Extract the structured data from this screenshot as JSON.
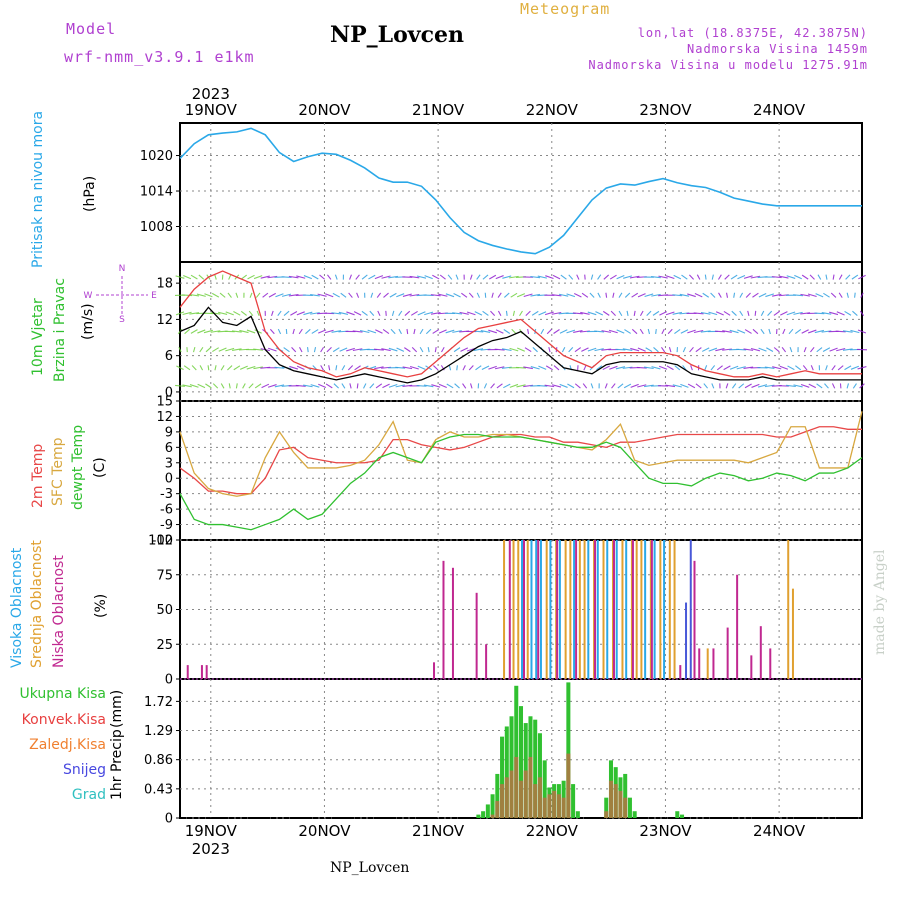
{
  "header": {
    "model_label": "Model",
    "model_version": "wrf-nmm_v3.9.1 e1km",
    "title": "NP_Lovcen",
    "subtitle": "Meteogram",
    "coords": "lon,lat (18.8375E, 42.3875N)",
    "altitude": "Nadmorska Visina 1459m",
    "model_altitude": "Nadmorska Visina u modelu 1275.91m"
  },
  "footer": {
    "station": "NP_Lovcen",
    "watermark": "made by Angel"
  },
  "chart_data": [
    {
      "type": "line",
      "panel": "pressure",
      "ylabel": "Pritisak na nivou mora",
      "unit": "(hPa)",
      "yticks": [
        1008,
        1014,
        1020
      ],
      "ylim": [
        1002,
        1025.5
      ],
      "grid": true,
      "x_top_labels": [
        "19NOV",
        "20NOV",
        "21NOV",
        "22NOV",
        "23NOV",
        "24NOV"
      ],
      "x_top_year": "2023",
      "color": "#2aa8e8",
      "x": [
        0,
        3,
        6,
        9,
        12,
        15,
        18,
        21,
        24,
        27,
        30,
        33,
        36,
        39,
        42,
        45,
        48,
        51,
        54,
        57,
        60,
        63,
        66,
        69,
        72,
        75,
        78,
        81,
        84,
        87,
        90,
        93,
        96,
        99,
        102,
        105,
        108,
        111,
        114,
        117,
        120,
        123,
        126,
        129,
        132,
        135,
        138,
        141,
        144
      ],
      "values": [
        1019.5,
        1022,
        1023.5,
        1023.8,
        1024,
        1024.6,
        1023.5,
        1020.5,
        1019,
        1019.8,
        1020.4,
        1020.2,
        1019.2,
        1017.9,
        1016.2,
        1015.5,
        1015.5,
        1014.8,
        1012.5,
        1009.5,
        1007,
        1005.6,
        1004.8,
        1004.2,
        1003.7,
        1003.4,
        1004.5,
        1006.5,
        1009.5,
        1012.5,
        1014.5,
        1015.2,
        1015,
        1015.6,
        1016.1,
        1015.4,
        1014.9,
        1014.6,
        1013.8,
        1012.8,
        1012.3,
        1011.8,
        1011.5,
        1011.5,
        1011.5,
        1011.5,
        1011.5,
        1011.5,
        1011.5
      ]
    },
    {
      "type": "line",
      "panel": "wind",
      "ylabel_1": "10m Vjetar",
      "ylabel_2": "Brzina i Pravac",
      "unit": "(m/s)",
      "compass_n": "N",
      "compass_s": "S",
      "compass_w": "W",
      "compass_e": "E",
      "yticks": [
        0,
        6,
        12,
        18
      ],
      "ylim": [
        -1.5,
        21.5
      ],
      "grid": true,
      "series": [
        {
          "color": "#000000",
          "x": [
            0,
            3,
            6,
            9,
            12,
            15,
            18,
            21,
            24,
            27,
            30,
            33,
            36,
            39,
            42,
            45,
            48,
            51,
            54,
            57,
            60,
            63,
            66,
            69,
            72,
            75,
            78,
            81,
            84,
            87,
            90,
            93,
            96,
            99,
            102,
            105,
            108,
            111,
            114,
            117,
            120,
            123,
            126,
            129,
            132,
            135,
            138,
            141,
            144
          ],
          "values": [
            10,
            11,
            14,
            11.5,
            11,
            12.5,
            7,
            4.5,
            3.5,
            3,
            2.5,
            2,
            2.5,
            3,
            2.5,
            2,
            1.5,
            2,
            3,
            4.5,
            6,
            7.5,
            8.5,
            9,
            10,
            8,
            6,
            4,
            3.5,
            3,
            4.5,
            5,
            5,
            5,
            5,
            4.5,
            3,
            2.5,
            2,
            2,
            2,
            2.5,
            2,
            2,
            2,
            2,
            2,
            2,
            2
          ]
        },
        {
          "color": "#e84040",
          "x": [
            0,
            3,
            6,
            9,
            12,
            15,
            18,
            21,
            24,
            27,
            30,
            33,
            36,
            39,
            42,
            45,
            48,
            51,
            54,
            57,
            60,
            63,
            66,
            69,
            72,
            75,
            78,
            81,
            84,
            87,
            90,
            93,
            96,
            99,
            102,
            105,
            108,
            111,
            114,
            117,
            120,
            123,
            126,
            129,
            132,
            135,
            138,
            141,
            144
          ],
          "values": [
            14,
            17,
            19,
            20,
            19,
            18,
            10,
            7,
            5,
            4,
            3.5,
            2.5,
            3,
            4,
            3.5,
            3,
            2.5,
            3,
            5,
            7,
            9,
            10.5,
            11,
            11.5,
            12,
            10,
            8,
            6,
            5,
            4,
            6,
            6.5,
            6.5,
            6.5,
            6.5,
            6,
            4.5,
            3.5,
            3,
            2.5,
            2.5,
            3,
            2.5,
            3,
            3.5,
            3,
            3,
            3,
            3
          ]
        }
      ]
    },
    {
      "type": "line",
      "panel": "temperature",
      "ylabel_1": "2m Temp",
      "ylabel_2": "SFC Temp",
      "ylabel_3": "dewpt Temp",
      "unit": "(C)",
      "yticks": [
        -12,
        -9,
        -6,
        -3,
        0,
        3,
        6,
        9,
        12,
        15
      ],
      "ylim": [
        -12,
        15
      ],
      "grid": true,
      "series": [
        {
          "name": "2m Temp",
          "color": "#e84848",
          "x": [
            0,
            3,
            6,
            9,
            12,
            15,
            18,
            21,
            24,
            27,
            30,
            33,
            36,
            39,
            42,
            45,
            48,
            51,
            54,
            57,
            60,
            63,
            66,
            69,
            72,
            75,
            78,
            81,
            84,
            87,
            90,
            93,
            96,
            99,
            102,
            105,
            108,
            111,
            114,
            117,
            120,
            123,
            126,
            129,
            132,
            135,
            138,
            141,
            144
          ],
          "values": [
            2,
            0,
            -2.5,
            -2.5,
            -3,
            -3,
            0,
            5.5,
            6,
            4,
            3.5,
            3,
            3,
            3,
            3.5,
            7.5,
            7.5,
            6.5,
            6,
            5.5,
            6,
            7,
            8,
            8.5,
            8.5,
            8,
            8,
            7,
            7,
            6.5,
            6,
            7,
            7,
            7.5,
            8,
            8.5,
            8.5,
            8.5,
            8.5,
            8.5,
            8.5,
            8.5,
            8,
            8,
            9,
            10,
            10,
            9.5,
            9.5
          ]
        },
        {
          "name": "SFC Temp",
          "color": "#d8a840",
          "x": [
            0,
            3,
            6,
            9,
            12,
            15,
            18,
            21,
            24,
            27,
            30,
            33,
            36,
            39,
            42,
            45,
            48,
            51,
            54,
            57,
            60,
            63,
            66,
            69,
            72,
            75,
            78,
            81,
            84,
            87,
            90,
            93,
            96,
            99,
            102,
            105,
            108,
            111,
            114,
            117,
            120,
            123,
            126,
            129,
            132,
            135,
            138,
            141,
            144
          ],
          "values": [
            9,
            1,
            -2,
            -3,
            -3.5,
            -3,
            4,
            9,
            5,
            2,
            2,
            2,
            2.5,
            3.5,
            6.5,
            11,
            3.5,
            3,
            7.5,
            9,
            8,
            8,
            8.5,
            8.5,
            8,
            7.5,
            7,
            6.5,
            6,
            5.5,
            7.5,
            10.5,
            3.5,
            2.5,
            3,
            3.5,
            3.5,
            3.5,
            3.5,
            3.5,
            3,
            4,
            5,
            10,
            10,
            2,
            2,
            2,
            13
          ]
        },
        {
          "name": "dewpt Temp",
          "color": "#30c030",
          "x": [
            0,
            3,
            6,
            9,
            12,
            15,
            18,
            21,
            24,
            27,
            30,
            33,
            36,
            39,
            42,
            45,
            48,
            51,
            54,
            57,
            60,
            63,
            66,
            69,
            72,
            75,
            78,
            81,
            84,
            87,
            90,
            93,
            96,
            99,
            102,
            105,
            108,
            111,
            114,
            117,
            120,
            123,
            126,
            129,
            132,
            135,
            138,
            141,
            144
          ],
          "values": [
            -3,
            -8,
            -9,
            -9,
            -9.5,
            -10,
            -9,
            -8,
            -6,
            -8,
            -7,
            -4,
            -1,
            1,
            4,
            5,
            4,
            3,
            7,
            8,
            8.5,
            8.5,
            8,
            8,
            8,
            7.5,
            7,
            6.5,
            6,
            6,
            7,
            6,
            3,
            0,
            -1,
            -1,
            -1.5,
            0,
            1,
            0.5,
            -0.5,
            0,
            1,
            0.5,
            -0.5,
            1,
            1,
            2,
            4
          ]
        }
      ]
    },
    {
      "type": "bar",
      "panel": "cloud_cover",
      "ylabel_1": "Visoka Oblacnost",
      "ylabel_2": "Srednja Oblacnost",
      "ylabel_3": "Niska Oblacnost",
      "unit": "(%)",
      "yticks": [
        0,
        25,
        50,
        75,
        100
      ],
      "ylim": [
        0,
        100
      ],
      "grid": true,
      "series": [
        {
          "name": "Visoka Oblacnost",
          "color": "#2aa8e8",
          "x": [
            72,
            74,
            75,
            76,
            78,
            80,
            83,
            86,
            88,
            90,
            92,
            94,
            98,
            100,
            102
          ],
          "values": [
            100,
            100,
            100,
            100,
            100,
            100,
            100,
            100,
            100,
            100,
            100,
            100,
            100,
            100,
            100
          ]
        },
        {
          "name": "Srednja Oblacnost",
          "color": "#e0a030",
          "x": [
            68,
            70,
            71,
            73,
            77,
            79,
            81,
            82,
            84,
            85,
            87,
            89,
            91,
            93,
            95,
            96,
            97,
            99,
            101,
            103,
            104,
            111,
            128,
            129
          ],
          "values": [
            100,
            100,
            100,
            100,
            100,
            100,
            100,
            100,
            100,
            100,
            100,
            100,
            100,
            100,
            100,
            100,
            100,
            100,
            100,
            100,
            100,
            22,
            100,
            65
          ]
        },
        {
          "name": "Niska Oblacnost",
          "color": "#c02890",
          "x": [
            1,
            4,
            5,
            53,
            55,
            57,
            62,
            64,
            69,
            72,
            75,
            79,
            83,
            87,
            91,
            95,
            99,
            105,
            108,
            109,
            112,
            115,
            117,
            120,
            122,
            124
          ],
          "values": [
            10,
            10,
            10,
            12,
            85,
            80,
            62,
            25,
            100,
            100,
            100,
            100,
            100,
            100,
            100,
            100,
            100,
            10,
            85,
            22,
            22,
            37,
            75,
            17,
            38,
            22
          ]
        },
        {
          "name": "",
          "color": "#4858d8",
          "x": [
            106,
            107
          ],
          "values": [
            55,
            100
          ]
        }
      ]
    },
    {
      "type": "bar",
      "panel": "precipitation",
      "ylabel": "1hr Precip",
      "unit": "(mm)",
      "yticks": [
        0,
        0.43,
        0.86,
        1.29,
        1.72
      ],
      "ylim": [
        0,
        2.05
      ],
      "grid": true,
      "x_bottom_labels": [
        "19NOV",
        "20NOV",
        "21NOV",
        "22NOV",
        "23NOV",
        "24NOV"
      ],
      "x_bottom_year": "2023",
      "legend": [
        {
          "label": "Ukupna Kisa",
          "color": "#30c030"
        },
        {
          "label": "Konvek.Kisa",
          "color": "#e84040"
        },
        {
          "label": "Zaledj.Kisa",
          "color": "#f08030"
        },
        {
          "label": "Snijeg",
          "color": "#4848e0"
        },
        {
          "label": "Grad",
          "color": "#30c0c0"
        }
      ],
      "series": [
        {
          "name": "Ukupna Kisa",
          "color": "#30c030",
          "x": [
            63,
            64,
            65,
            66,
            67,
            68,
            69,
            70,
            71,
            72,
            73,
            74,
            75,
            76,
            77,
            78,
            79,
            80,
            81,
            82,
            83,
            84,
            85,
            86,
            87,
            88,
            89,
            90,
            91,
            92,
            93,
            94,
            95,
            96,
            97,
            98,
            99,
            100,
            101,
            102,
            103,
            104,
            105,
            106,
            107
          ],
          "values": [
            0.05,
            0.1,
            0.2,
            0.35,
            0.65,
            1.2,
            1.35,
            1.5,
            1.95,
            1.65,
            1.4,
            1.5,
            1.45,
            1.25,
            0.85,
            0.45,
            0.5,
            0.5,
            0.55,
            2.0,
            0.5,
            0.1,
            0,
            0,
            0,
            0,
            0,
            0.3,
            0.85,
            0.75,
            0.6,
            0.65,
            0.3,
            0.1,
            0,
            0,
            0,
            0,
            0,
            0,
            0,
            0,
            0.1,
            0.05,
            0
          ]
        },
        {
          "name": "Konvek.Kisa",
          "color": "#a08040",
          "x": [
            66,
            67,
            68,
            69,
            70,
            71,
            72,
            73,
            74,
            75,
            76,
            77,
            78,
            79,
            80,
            81,
            82,
            90,
            91,
            92,
            93,
            94
          ],
          "values": [
            0.05,
            0.25,
            0.5,
            0.6,
            0.7,
            0.9,
            0.55,
            0.7,
            0.9,
            0.5,
            0.6,
            0.3,
            0.35,
            0.4,
            0.35,
            0.3,
            0.95,
            0.1,
            0.55,
            0.5,
            0.4,
            0.3
          ]
        }
      ]
    }
  ]
}
